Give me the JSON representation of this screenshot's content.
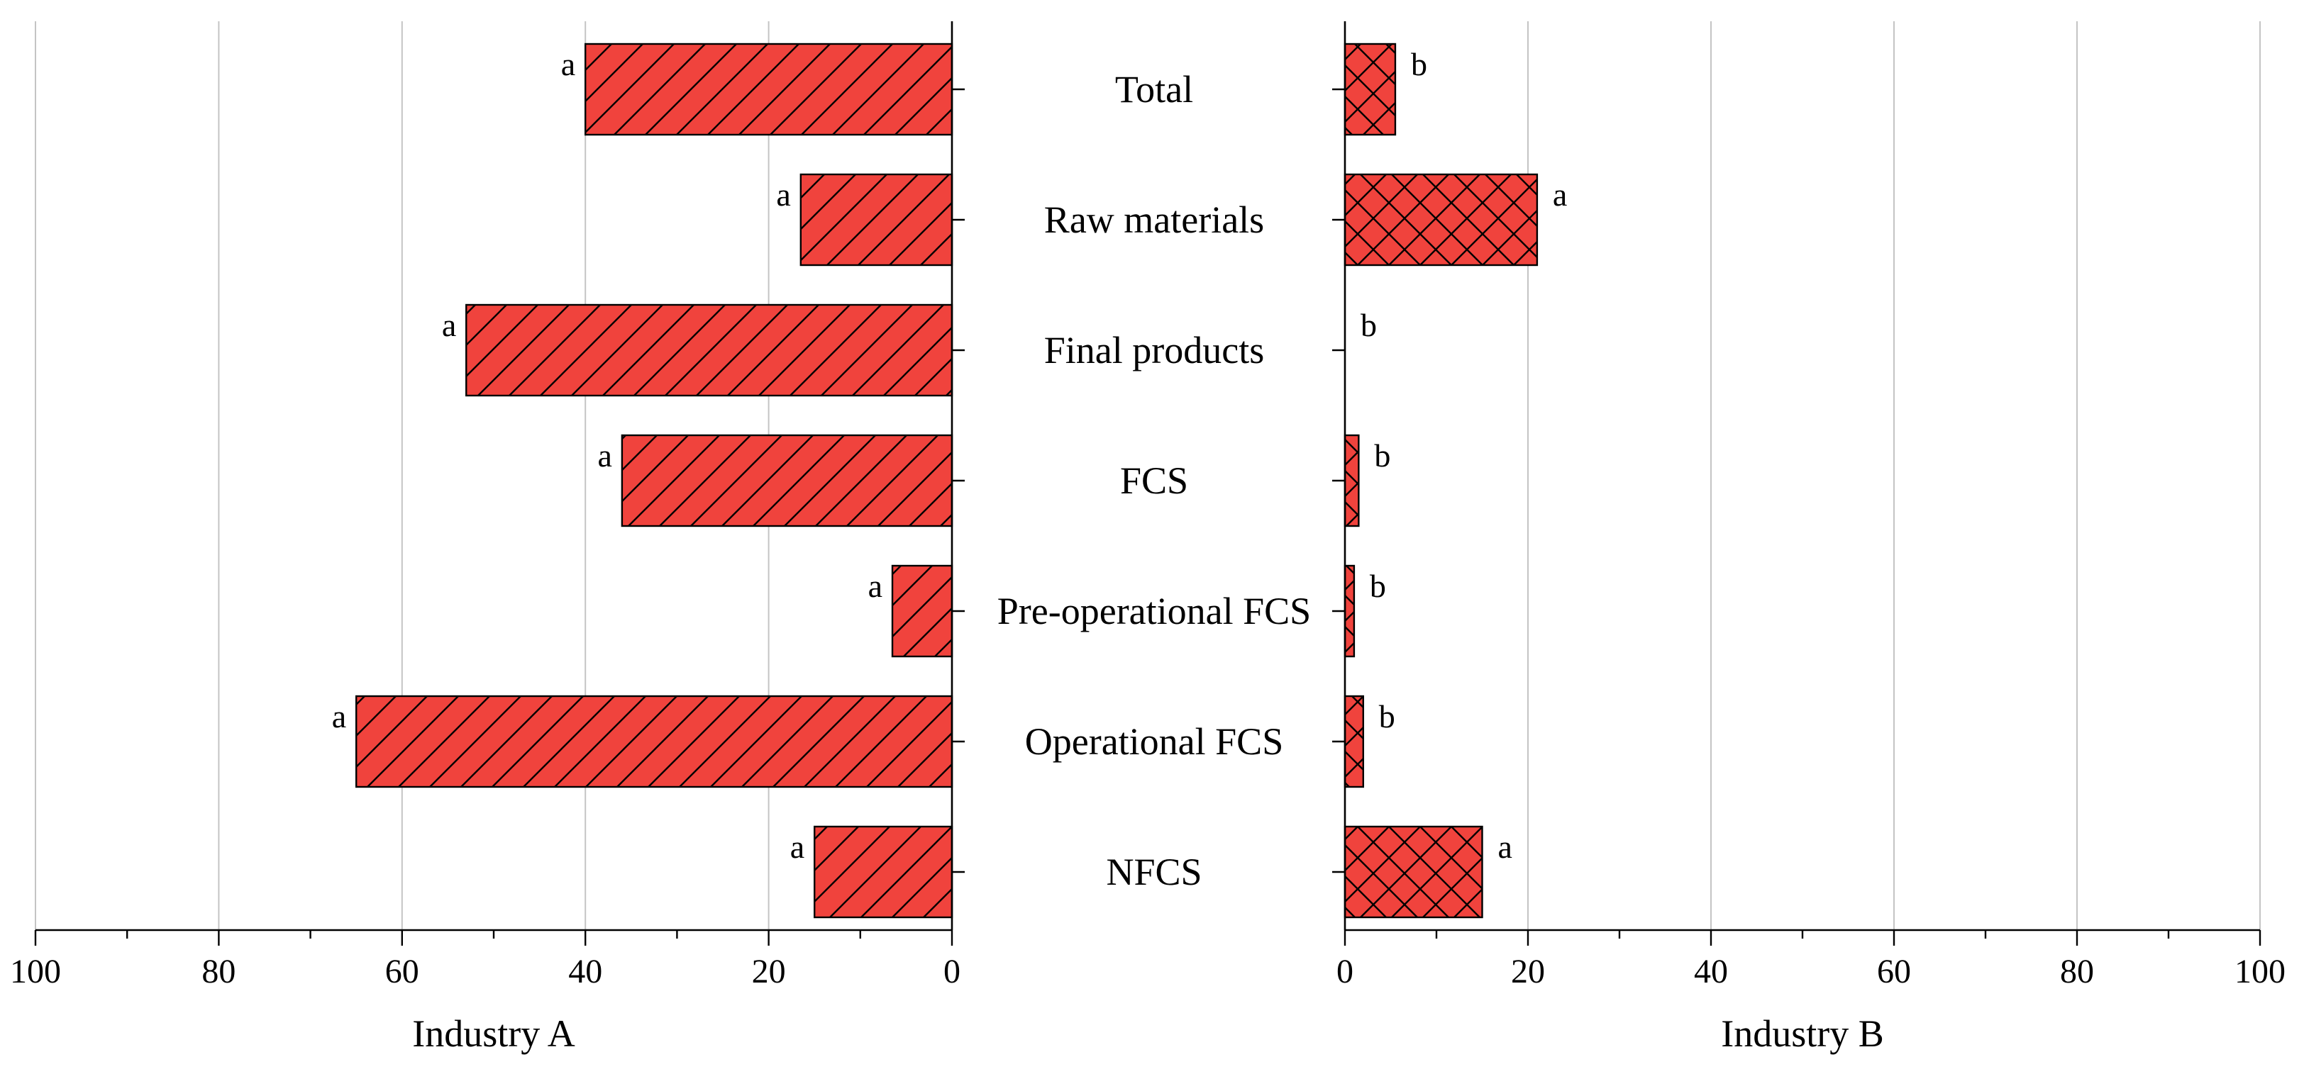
{
  "chart_data": [
    {
      "panel": "left",
      "type": "bar",
      "orientation": "horizontal",
      "direction": "reversed",
      "xlabel": "Industry A",
      "xlim": [
        100,
        0
      ],
      "grid": true,
      "hatch": "diagonal",
      "bar_color": "#f0433d",
      "categories": [
        "Total",
        "Raw materials",
        "Final products",
        "FCS",
        "Pre-operational FCS",
        "Operational FCS",
        "NFCS"
      ],
      "values": [
        40,
        16.5,
        53,
        36,
        6.5,
        65,
        15
      ],
      "significance": [
        "a",
        "a",
        "a",
        "a",
        "a",
        "a",
        "a"
      ],
      "ticks": [
        "100",
        "80",
        "60",
        "40",
        "20",
        "0"
      ]
    },
    {
      "panel": "right",
      "type": "bar",
      "orientation": "horizontal",
      "xlabel": "Industry B",
      "xlim": [
        0,
        100
      ],
      "grid": true,
      "hatch": "crosshatch",
      "bar_color": "#f0433d",
      "categories": [
        "Total",
        "Raw materials",
        "Final products",
        "FCS",
        "Pre-operational FCS",
        "Operational FCS",
        "NFCS"
      ],
      "values": [
        5.5,
        21,
        0,
        1.5,
        1,
        2,
        15
      ],
      "significance": [
        "b",
        "a",
        "b",
        "b",
        "b",
        "b",
        "a"
      ],
      "ticks": [
        "0",
        "20",
        "40",
        "60",
        "80",
        "100"
      ]
    }
  ]
}
